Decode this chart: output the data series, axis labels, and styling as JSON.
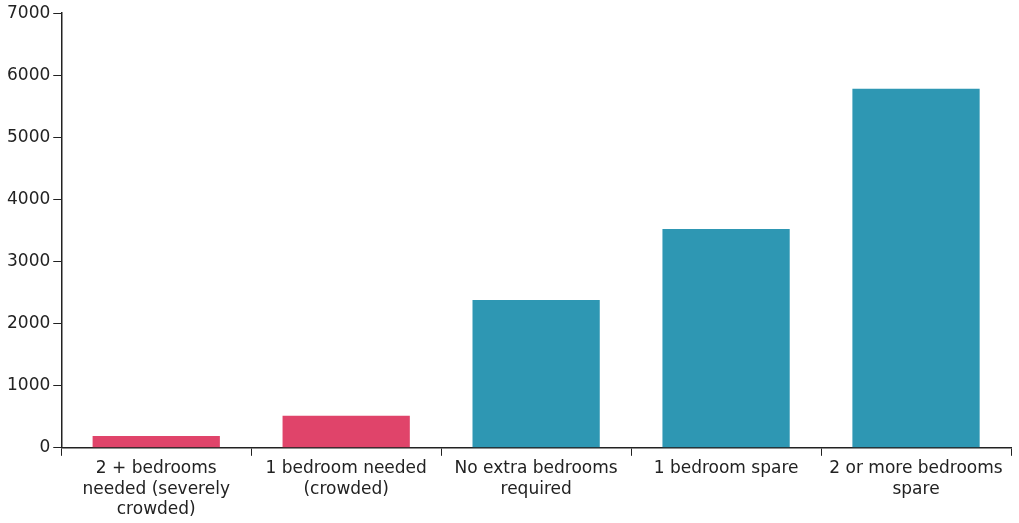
{
  "chart_data": {
    "type": "bar",
    "categories": [
      "2 + bedrooms needed (severely crowded)",
      "1 bedroom needed (crowded)",
      "No extra bedrooms required",
      "1 bedroom spare",
      "2 or more bedrooms spare"
    ],
    "values": [
      190,
      515,
      2380,
      3525,
      5785
    ],
    "colors": [
      "#e0446a",
      "#e0446a",
      "#2e97b3",
      "#2e97b3",
      "#2e97b3"
    ],
    "ylim": [
      0,
      7000
    ],
    "yticks": [
      0,
      1000,
      2000,
      3000,
      4000,
      5000,
      6000,
      7000
    ],
    "grid": false,
    "legend": false
  }
}
